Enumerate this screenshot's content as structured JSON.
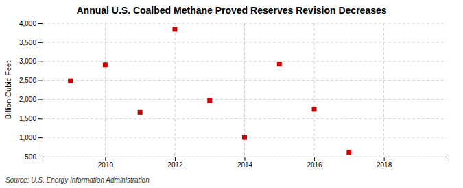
{
  "chart_data": {
    "type": "scatter",
    "title": "Annual U.S. Coalbed Methane Proved Reserves Revision Decreases",
    "ylabel": "Billion Cubic Feet",
    "source": "Source: U.S. Energy Information Administration",
    "x": [
      2009,
      2010,
      2011,
      2012,
      2013,
      2014,
      2015,
      2016,
      2017
    ],
    "values": [
      2490,
      2910,
      1660,
      3840,
      1970,
      1000,
      2930,
      1740,
      615
    ],
    "color": "#cc0000",
    "marker": "square",
    "xlim": [
      2008.2,
      2019.8
    ],
    "ylim": [
      500,
      4000
    ],
    "xticks": [
      2010,
      2012,
      2014,
      2016,
      2018
    ],
    "yticks": [
      500,
      {
        "value": 1000,
        "label": "1,000"
      },
      {
        "value": 1500,
        "label": "1,500"
      },
      {
        "value": 2000,
        "label": "2,000"
      },
      {
        "value": 2500,
        "label": "2,500"
      },
      {
        "value": 3000,
        "label": "3,000"
      },
      {
        "value": 3500,
        "label": "3,500"
      },
      {
        "value": 4000,
        "label": "4,000"
      }
    ],
    "grid": true
  }
}
